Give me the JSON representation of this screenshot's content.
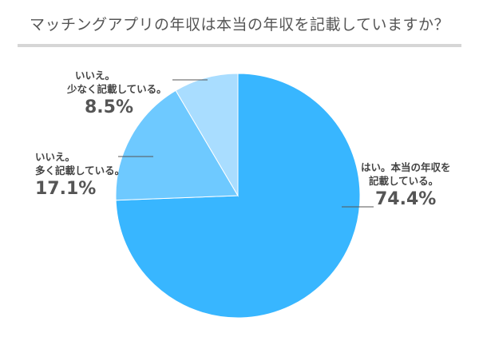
{
  "title": "マッチングアプリの年収は本当の年収を記載していますか？",
  "colors": {
    "yes": "#38b6ff",
    "no_slightly": "#a9ddff",
    "no_much": "#6ec9ff",
    "line": "#555555",
    "rule": "#d6d6d6"
  },
  "chart_data": {
    "type": "pie",
    "title": "マッチングアプリの年収は本当の年収を記載していますか？",
    "slices": [
      {
        "label_line1": "はい。本当の年収を",
        "label_line2": "記載している。",
        "value": 74.4,
        "display": "74.4%"
      },
      {
        "label_line1": "いいえ。",
        "label_line2": "多く記載している。",
        "value": 17.1,
        "display": "17.1%"
      },
      {
        "label_line1": "いいえ。",
        "label_line2": "少なく記載している。",
        "value": 8.5,
        "display": "8.5%"
      }
    ]
  }
}
